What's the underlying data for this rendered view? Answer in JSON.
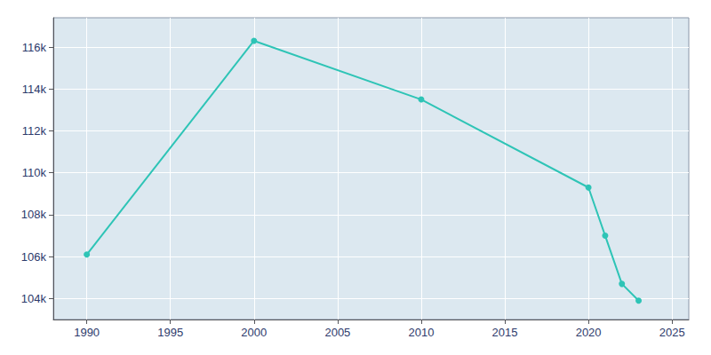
{
  "chart_data": {
    "type": "line",
    "x": [
      1990,
      2000,
      2010,
      2020,
      2021,
      2022,
      2023
    ],
    "values": [
      106100,
      116300,
      113500,
      109300,
      107000,
      104700,
      103900
    ],
    "color": "#2ec4b6",
    "marker": "circle",
    "xlim": [
      1988,
      2026
    ],
    "xticks": [
      1990,
      1995,
      2000,
      2005,
      2010,
      2015,
      2020,
      2025
    ],
    "ylim": [
      103000,
      117400
    ],
    "yticks": [
      {
        "value": 104000,
        "label": "104k"
      },
      {
        "value": 106000,
        "label": "106k"
      },
      {
        "value": 108000,
        "label": "108k"
      },
      {
        "value": 110000,
        "label": "110k"
      },
      {
        "value": 112000,
        "label": "112k"
      },
      {
        "value": 114000,
        "label": "114k"
      },
      {
        "value": 116000,
        "label": "116k"
      }
    ],
    "grid": true
  }
}
